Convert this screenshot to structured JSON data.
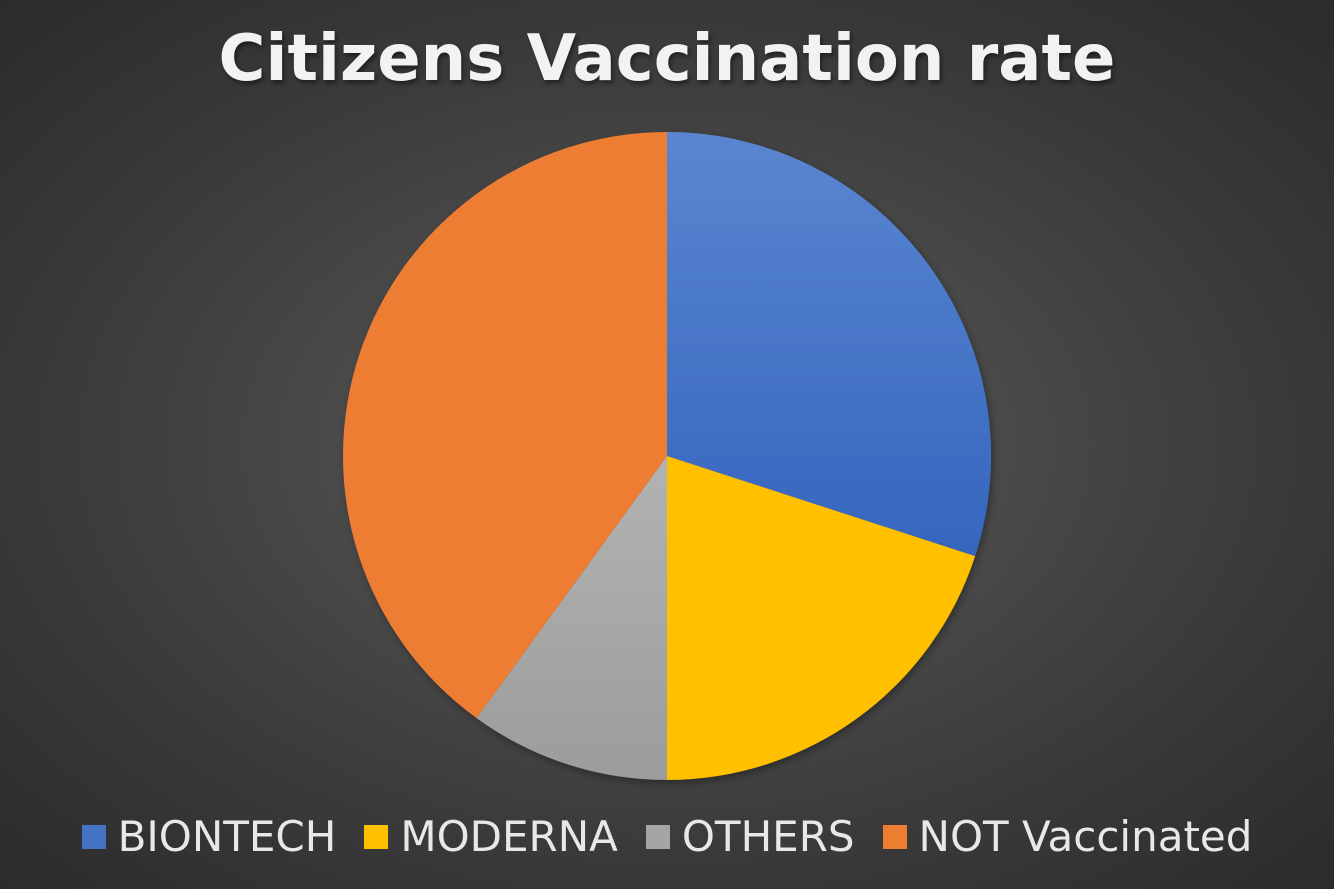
{
  "chart_data": {
    "type": "pie",
    "title": "Citizens Vaccination rate",
    "categories": [
      "BIONTECH",
      "MODERNA",
      "OTHERS",
      "NOT Vaccinated"
    ],
    "values": [
      30,
      20,
      10,
      40
    ],
    "colors": [
      "#4472c4",
      "#ffc000",
      "#a5a5a5",
      "#ed7d31"
    ],
    "start_angle_deg": 0,
    "direction": "clockwise",
    "legend_position": "bottom"
  }
}
